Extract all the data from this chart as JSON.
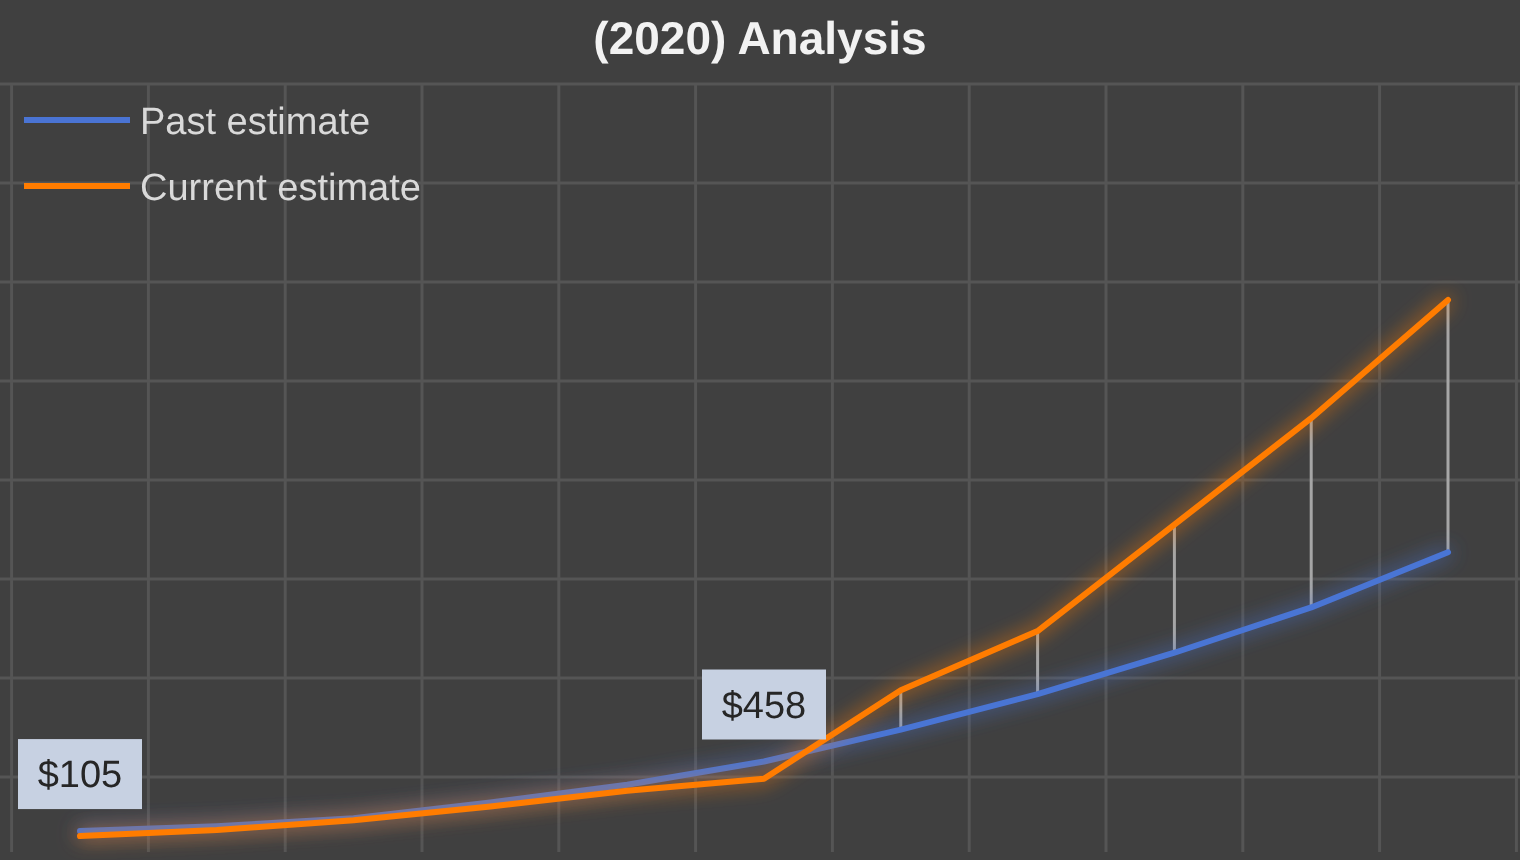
{
  "chart_data": {
    "type": "line",
    "title": "(2020) Analysis",
    "categories": [
      null,
      null,
      null,
      null,
      null,
      null,
      null,
      null,
      null,
      null,
      null
    ],
    "grid": true,
    "legend": "top left",
    "series": [
      {
        "name": "Past estimate",
        "color": "#4a74d4",
        "values": [
          105,
          130,
          170,
          250,
          340,
          458,
          620,
          800,
          1010,
          1240,
          1520
        ],
        "value_labels": [
          "$105",
          null,
          null,
          null,
          null,
          "$458",
          null,
          null,
          null,
          null,
          null
        ]
      },
      {
        "name": "Current estimate",
        "color": "#ff7c00",
        "values": [
          80,
          110,
          160,
          230,
          310,
          370,
          820,
          1120,
          1660,
          2200,
          2800
        ]
      }
    ]
  }
}
